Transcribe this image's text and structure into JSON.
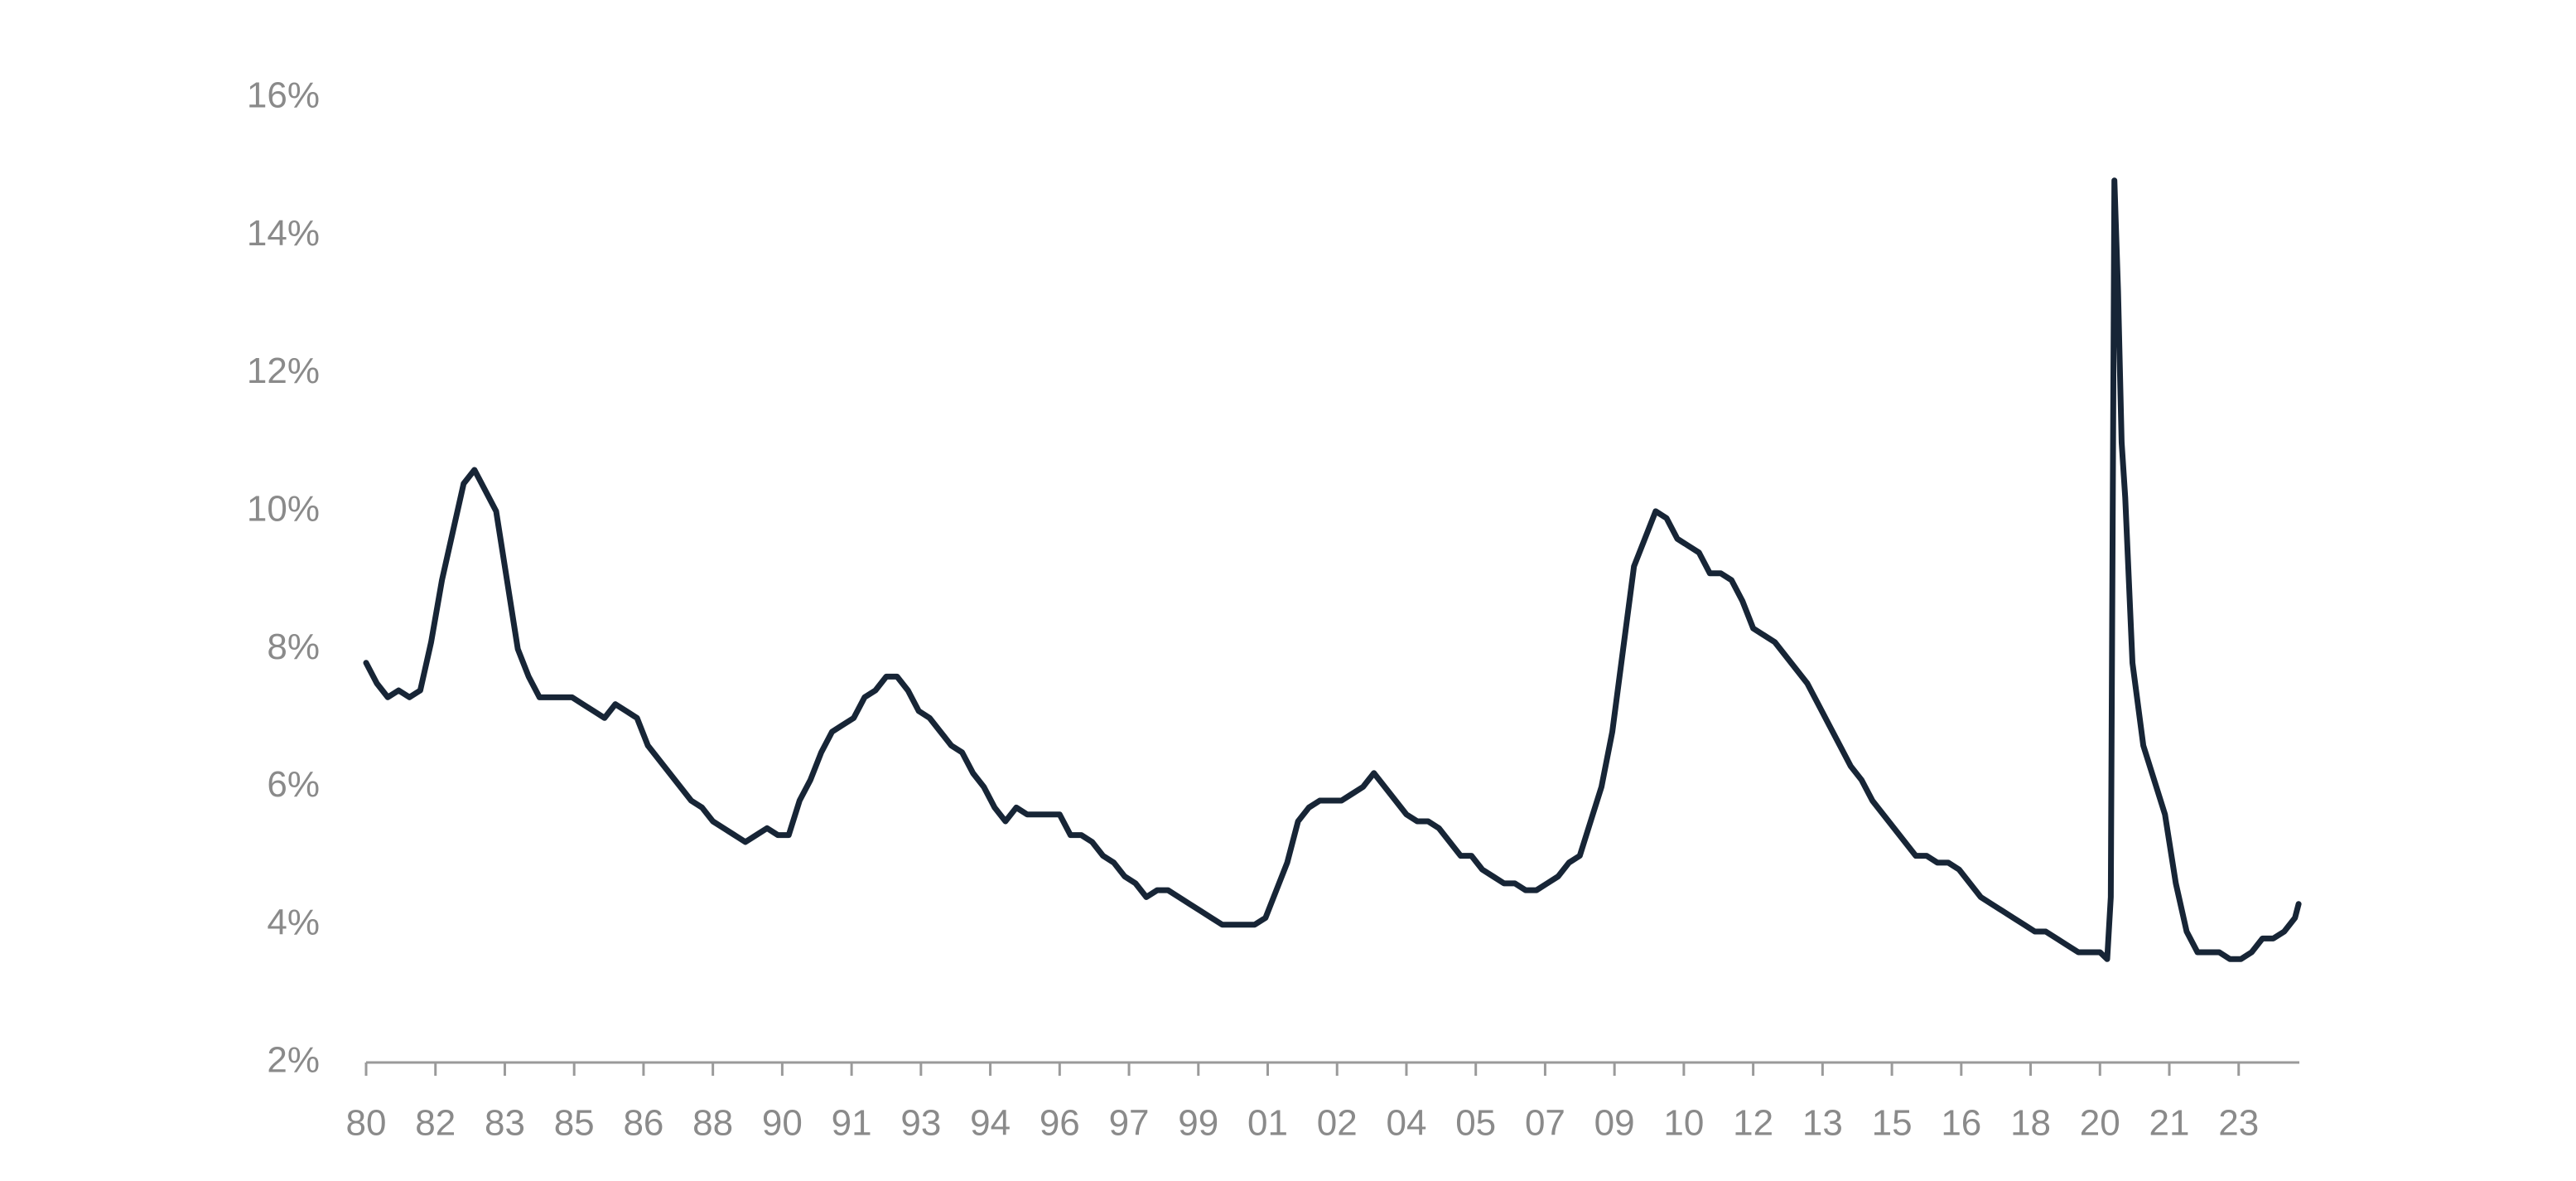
{
  "chart_data": {
    "type": "line",
    "color": "#172536",
    "x": [
      1980,
      1980.25,
      1980.5,
      1980.75,
      1981,
      1981.25,
      1981.5,
      1981.75,
      1982,
      1982.25,
      1982.5,
      1982.75,
      1983,
      1983.25,
      1983.5,
      1983.75,
      1984,
      1984.25,
      1984.5,
      1984.75,
      1985,
      1985.25,
      1985.5,
      1985.75,
      1986,
      1986.25,
      1986.5,
      1986.75,
      1987,
      1987.25,
      1987.5,
      1987.75,
      1988,
      1988.25,
      1988.5,
      1988.75,
      1989,
      1989.25,
      1989.5,
      1989.75,
      1990,
      1990.25,
      1990.5,
      1990.75,
      1991,
      1991.25,
      1991.5,
      1991.75,
      1992,
      1992.25,
      1992.5,
      1992.75,
      1993,
      1993.25,
      1993.5,
      1993.75,
      1994,
      1994.25,
      1994.5,
      1994.75,
      1995,
      1995.25,
      1995.5,
      1995.75,
      1996,
      1996.25,
      1996.5,
      1996.75,
      1997,
      1997.25,
      1997.5,
      1997.75,
      1998,
      1998.25,
      1998.5,
      1998.75,
      1999,
      1999.25,
      1999.5,
      1999.75,
      2000,
      2000.25,
      2000.5,
      2000.75,
      2001,
      2001.25,
      2001.5,
      2001.75,
      2002,
      2002.25,
      2002.5,
      2002.75,
      2003,
      2003.25,
      2003.5,
      2003.75,
      2004,
      2004.25,
      2004.5,
      2004.75,
      2005,
      2005.25,
      2005.5,
      2005.75,
      2006,
      2006.25,
      2006.5,
      2006.75,
      2007,
      2007.25,
      2007.5,
      2007.75,
      2008,
      2008.25,
      2008.5,
      2008.75,
      2009,
      2009.25,
      2009.5,
      2009.75,
      2010,
      2010.25,
      2010.5,
      2010.75,
      2011,
      2011.25,
      2011.5,
      2011.75,
      2012,
      2012.25,
      2012.5,
      2012.75,
      2013,
      2013.25,
      2013.5,
      2013.75,
      2014,
      2014.25,
      2014.5,
      2014.75,
      2015,
      2015.25,
      2015.5,
      2015.75,
      2016,
      2016.25,
      2016.5,
      2016.75,
      2017,
      2017.25,
      2017.5,
      2017.75,
      2018,
      2018.25,
      2018.5,
      2018.75,
      2019,
      2019.25,
      2019.5,
      2019.75,
      2020,
      2020.167,
      2020.25,
      2020.333,
      2020.417,
      2020.5,
      2020.583,
      2020.75,
      2021,
      2021.25,
      2021.5,
      2021.75,
      2022,
      2022.25,
      2022.5,
      2022.75,
      2023,
      2023.25,
      2023.5,
      2023.75,
      2024,
      2024.25,
      2024.5,
      2024.583
    ],
    "values": [
      7.8,
      7.5,
      7.3,
      7.4,
      7.3,
      7.4,
      8.1,
      9.0,
      9.7,
      10.4,
      10.6,
      10.3,
      10.0,
      9.0,
      8.0,
      7.6,
      7.3,
      7.3,
      7.3,
      7.3,
      7.2,
      7.1,
      7.0,
      7.2,
      7.1,
      7.0,
      6.6,
      6.4,
      6.2,
      6.0,
      5.8,
      5.7,
      5.5,
      5.4,
      5.3,
      5.2,
      5.3,
      5.4,
      5.3,
      5.3,
      5.8,
      6.1,
      6.5,
      6.8,
      6.9,
      7.0,
      7.3,
      7.4,
      7.6,
      7.6,
      7.4,
      7.1,
      7.0,
      6.8,
      6.6,
      6.5,
      6.2,
      6.0,
      5.7,
      5.5,
      5.7,
      5.6,
      5.6,
      5.6,
      5.6,
      5.3,
      5.3,
      5.2,
      5.0,
      4.9,
      4.7,
      4.6,
      4.4,
      4.5,
      4.5,
      4.4,
      4.3,
      4.2,
      4.1,
      4.0,
      4.0,
      4.0,
      4.0,
      4.1,
      4.5,
      4.9,
      5.5,
      5.7,
      5.8,
      5.8,
      5.8,
      5.9,
      6.0,
      6.2,
      6.0,
      5.8,
      5.6,
      5.5,
      5.5,
      5.4,
      5.2,
      5.0,
      5.0,
      4.8,
      4.7,
      4.6,
      4.6,
      4.5,
      4.5,
      4.6,
      4.7,
      4.9,
      5.0,
      5.5,
      6.0,
      6.8,
      8.0,
      9.2,
      9.6,
      10.0,
      9.9,
      9.6,
      9.5,
      9.4,
      9.1,
      9.1,
      9.0,
      8.7,
      8.3,
      8.2,
      8.1,
      7.9,
      7.7,
      7.5,
      7.2,
      6.9,
      6.6,
      6.3,
      6.1,
      5.8,
      5.6,
      5.4,
      5.2,
      5.0,
      5.0,
      4.9,
      4.9,
      4.8,
      4.6,
      4.4,
      4.3,
      4.2,
      4.1,
      4.0,
      3.9,
      3.9,
      3.8,
      3.7,
      3.6,
      3.6,
      3.6,
      3.5,
      4.4,
      14.8,
      13.2,
      11.0,
      10.2,
      7.8,
      6.6,
      6.1,
      5.6,
      4.6,
      3.9,
      3.6,
      3.6,
      3.6,
      3.5,
      3.5,
      3.6,
      3.8,
      3.8,
      3.9,
      4.1,
      4.3
    ],
    "xlim": [
      1980,
      2024.6
    ],
    "xticks": [
      {
        "value": 1980,
        "label": "80"
      },
      {
        "value": 1981.6,
        "label": "82"
      },
      {
        "value": 1983.2,
        "label": "83"
      },
      {
        "value": 1984.8,
        "label": "85"
      },
      {
        "value": 1986.4,
        "label": "86"
      },
      {
        "value": 1988,
        "label": "88"
      },
      {
        "value": 1989.6,
        "label": "90"
      },
      {
        "value": 1991.2,
        "label": "91"
      },
      {
        "value": 1992.8,
        "label": "93"
      },
      {
        "value": 1994.4,
        "label": "94"
      },
      {
        "value": 1996,
        "label": "96"
      },
      {
        "value": 1997.6,
        "label": "97"
      },
      {
        "value": 1999.2,
        "label": "99"
      },
      {
        "value": 2000.8,
        "label": "01"
      },
      {
        "value": 2002.4,
        "label": "02"
      },
      {
        "value": 2004,
        "label": "04"
      },
      {
        "value": 2005.6,
        "label": "05"
      },
      {
        "value": 2007.2,
        "label": "07"
      },
      {
        "value": 2008.8,
        "label": "09"
      },
      {
        "value": 2010.4,
        "label": "10"
      },
      {
        "value": 2012,
        "label": "12"
      },
      {
        "value": 2013.6,
        "label": "13"
      },
      {
        "value": 2015.2,
        "label": "15"
      },
      {
        "value": 2016.8,
        "label": "16"
      },
      {
        "value": 2018.4,
        "label": "18"
      },
      {
        "value": 2020,
        "label": "20"
      },
      {
        "value": 2021.6,
        "label": "21"
      },
      {
        "value": 2023.2,
        "label": "23"
      }
    ],
    "ylim": [
      2,
      16
    ],
    "yticks": [
      {
        "value": 2,
        "label": "2%"
      },
      {
        "value": 4,
        "label": "4%"
      },
      {
        "value": 6,
        "label": "6%"
      },
      {
        "value": 8,
        "label": "8%"
      },
      {
        "value": 10,
        "label": "10%"
      },
      {
        "value": 12,
        "label": "12%"
      },
      {
        "value": 14,
        "label": "14%"
      },
      {
        "value": 16,
        "label": "16%"
      }
    ],
    "grid": false
  }
}
